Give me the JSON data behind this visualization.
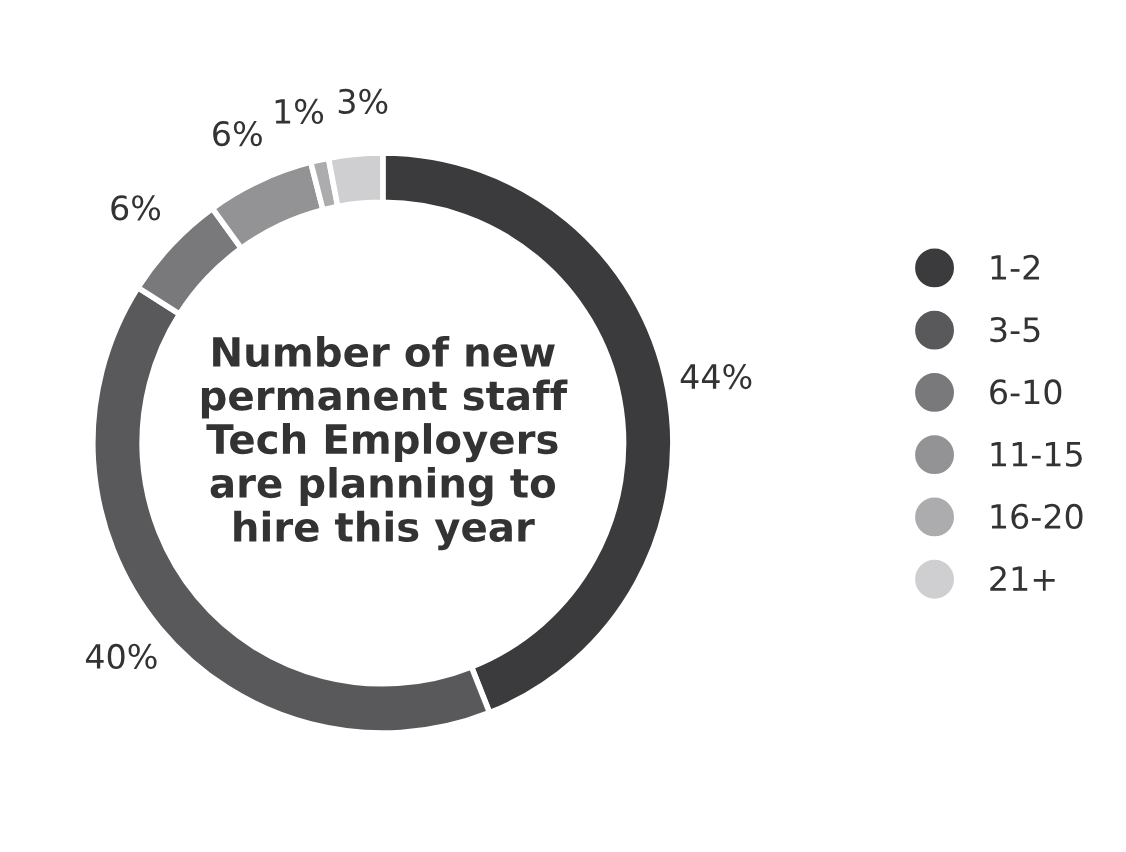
{
  "chart_data": {
    "type": "donut",
    "title": "Number of new\npermanent staff\nTech Employers\nare planning to\nhire this year",
    "categories": [
      "1-2",
      "3-5",
      "6-10",
      "11-15",
      "16-20",
      "21+"
    ],
    "values": [
      44,
      40,
      6,
      6,
      1,
      3
    ],
    "value_labels": [
      "44%",
      "40%",
      "6%",
      "6%",
      "1%",
      "3%"
    ],
    "colors": [
      "#3b3b3d",
      "#59595b",
      "#79797b",
      "#939395",
      "#acacae",
      "#cfcfd1"
    ],
    "legend": "right"
  }
}
